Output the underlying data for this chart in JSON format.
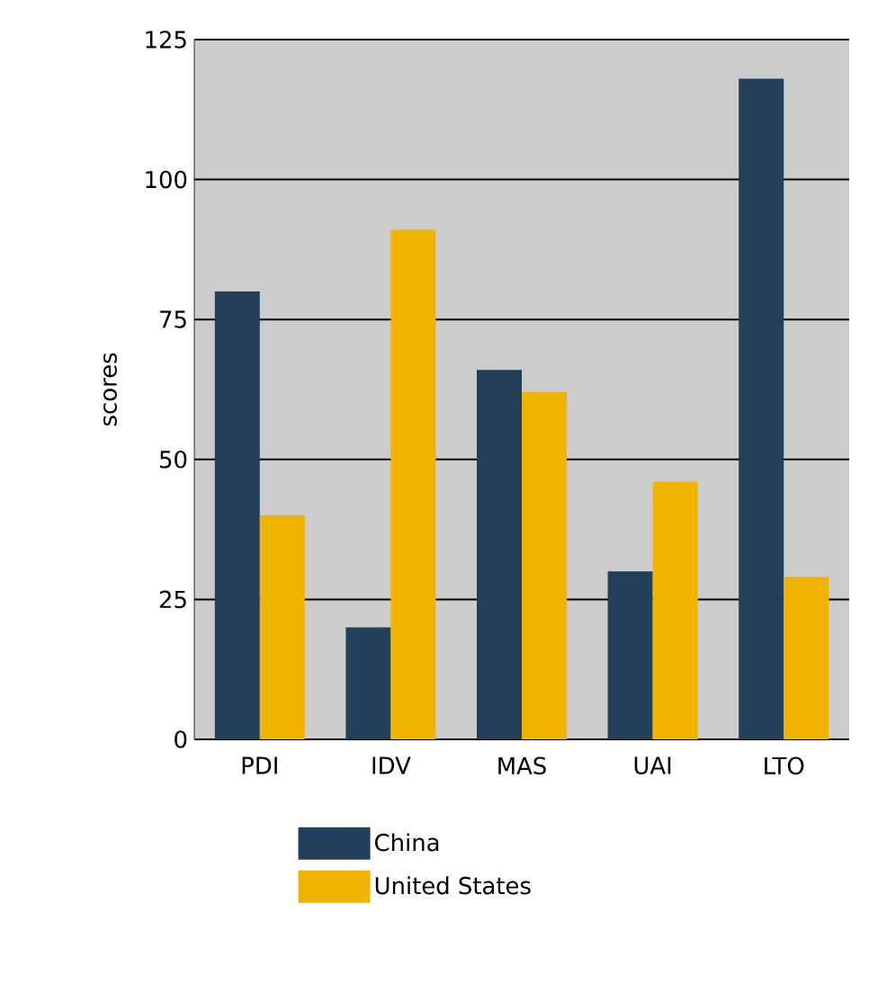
{
  "chart_data": {
    "type": "bar",
    "ylabel": "scores",
    "categories": [
      "PDI",
      "IDV",
      "MAS",
      "UAI",
      "LTO"
    ],
    "series": [
      {
        "name": "China",
        "color": "#243f5c",
        "values": [
          80,
          20,
          66,
          30,
          118
        ]
      },
      {
        "name": "United States",
        "color": "#f0b400",
        "values": [
          40,
          91,
          62,
          46,
          29
        ]
      }
    ],
    "ylim": [
      0,
      125
    ],
    "yticks": [
      0,
      25,
      50,
      75,
      100,
      125
    ],
    "grid": "y",
    "legend": "bottom"
  }
}
